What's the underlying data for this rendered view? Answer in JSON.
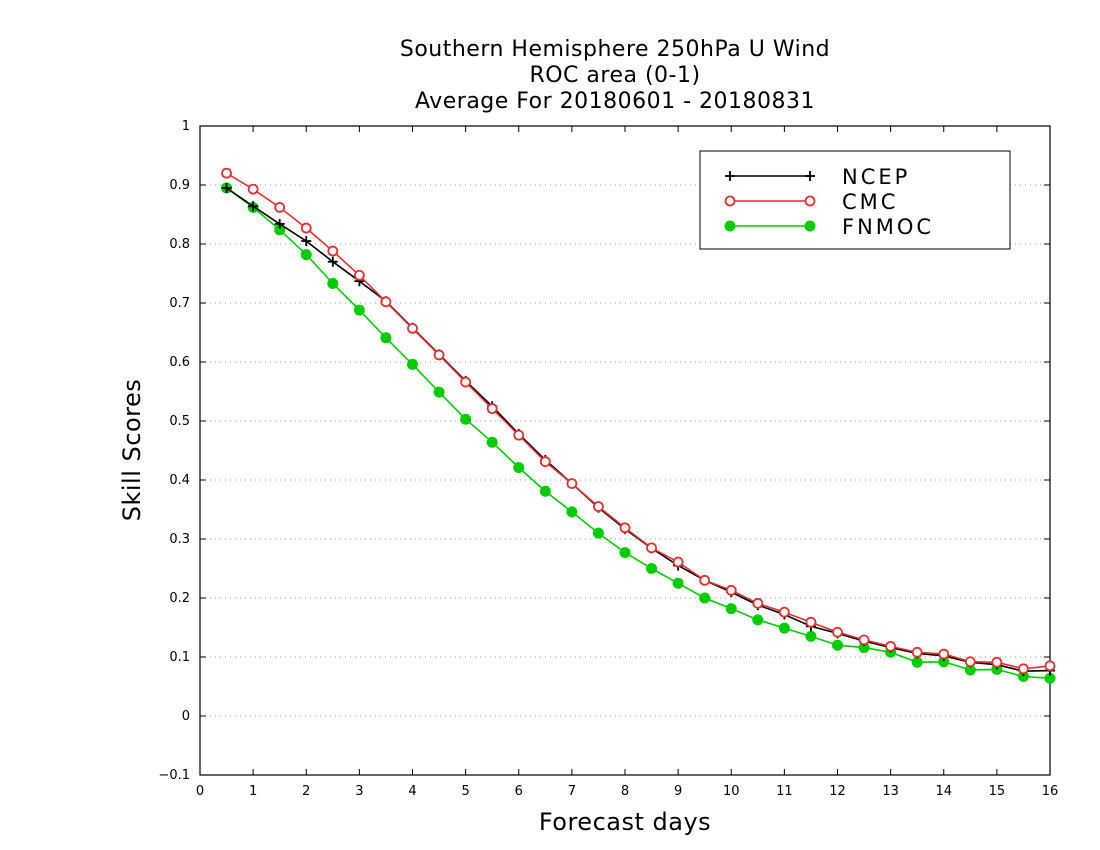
{
  "chart_data": {
    "type": "line",
    "title": [
      "Southern Hemisphere 250hPa U Wind",
      "ROC area (0-1)",
      "Average For 20180601 - 20180831"
    ],
    "xlabel": "Forecast days",
    "ylabel": "Skill Scores",
    "xlim": [
      0,
      16
    ],
    "ylim": [
      -0.1,
      1
    ],
    "xticks": [
      "0",
      "1",
      "2",
      "3",
      "4",
      "5",
      "6",
      "7",
      "8",
      "9",
      "10",
      "11",
      "12",
      "13",
      "14",
      "15",
      "16"
    ],
    "yticks": [
      "−0.1",
      "0",
      "0.1",
      "0.2",
      "0.3",
      "0.4",
      "0.5",
      "0.6",
      "0.7",
      "0.8",
      "0.9",
      "1"
    ],
    "grid": true,
    "legend_position": "top-right",
    "x": [
      0.5,
      1,
      1.5,
      2,
      2.5,
      3,
      3.5,
      4,
      4.5,
      5,
      5.5,
      6,
      6.5,
      7,
      7.5,
      8,
      8.5,
      9,
      9.5,
      10,
      10.5,
      11,
      11.5,
      12,
      12.5,
      13,
      13.5,
      14,
      14.5,
      15,
      15.5,
      16
    ],
    "series": [
      {
        "name": "NCEP",
        "color": "#000000",
        "marker": "plus",
        "values": [
          0.895,
          0.864,
          0.834,
          0.805,
          0.77,
          0.737,
          0.703,
          0.658,
          0.613,
          0.568,
          0.525,
          0.478,
          0.434,
          0.394,
          0.353,
          0.317,
          0.284,
          0.255,
          0.23,
          0.21,
          0.188,
          0.172,
          0.152,
          0.14,
          0.127,
          0.116,
          0.106,
          0.102,
          0.091,
          0.087,
          0.076,
          0.077
        ]
      },
      {
        "name": "CMC",
        "color": "#e03030",
        "marker": "open-circle",
        "values": [
          0.92,
          0.893,
          0.862,
          0.827,
          0.788,
          0.747,
          0.702,
          0.657,
          0.612,
          0.566,
          0.521,
          0.476,
          0.431,
          0.394,
          0.355,
          0.319,
          0.285,
          0.261,
          0.23,
          0.213,
          0.191,
          0.176,
          0.159,
          0.142,
          0.129,
          0.118,
          0.108,
          0.105,
          0.092,
          0.091,
          0.08,
          0.085
        ]
      },
      {
        "name": "FNMOC",
        "color": "#00cc00",
        "marker": "filled-circle",
        "values": [
          0.895,
          0.862,
          0.824,
          0.782,
          0.733,
          0.688,
          0.641,
          0.596,
          0.549,
          0.503,
          0.464,
          0.421,
          0.381,
          0.346,
          0.31,
          0.277,
          0.25,
          0.225,
          0.2,
          0.182,
          0.163,
          0.149,
          0.135,
          0.12,
          0.116,
          0.108,
          0.091,
          0.092,
          0.078,
          0.079,
          0.067,
          0.064
        ]
      }
    ]
  }
}
